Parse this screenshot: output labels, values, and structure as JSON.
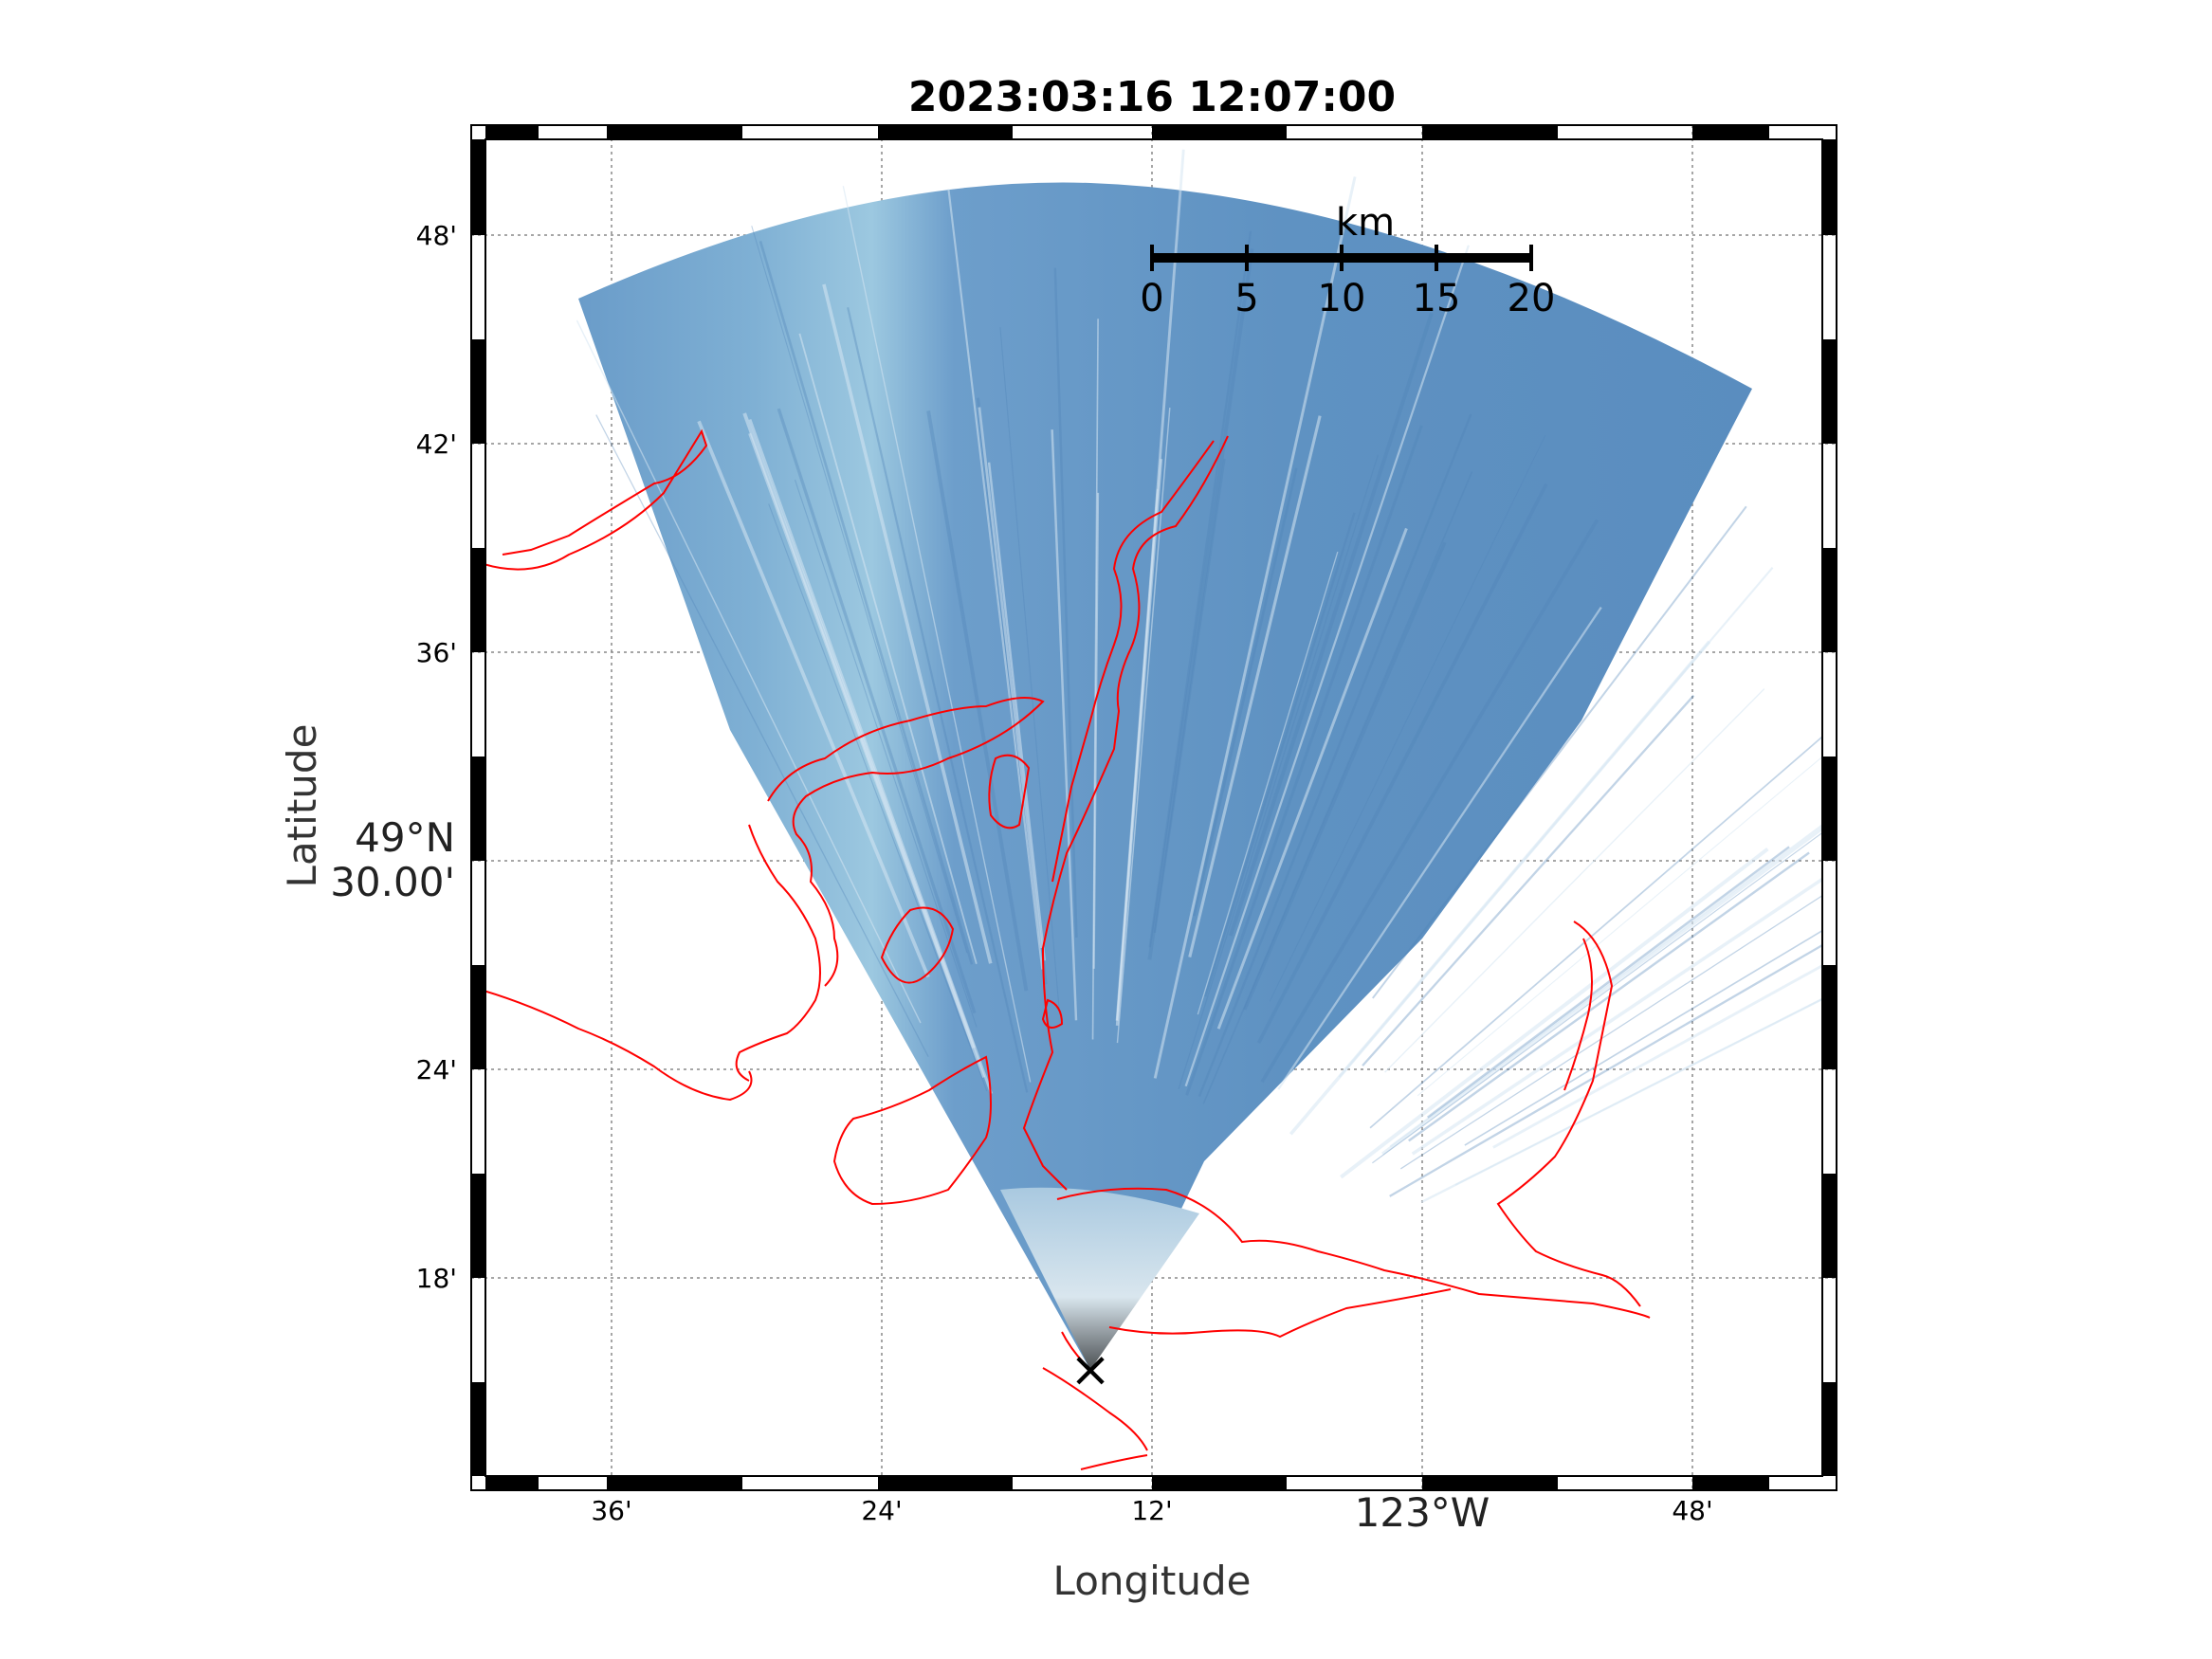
{
  "title": "2023:03:16 12:07:00",
  "axes": {
    "xlabel": "Longitude",
    "ylabel": "Latitude"
  },
  "lon_ticks": [
    {
      "value": -123.6,
      "label": "36'"
    },
    {
      "value": -123.4,
      "label": "24'"
    },
    {
      "value": -123.2,
      "label": "12'"
    },
    {
      "value": -122.8,
      "label": "48'"
    }
  ],
  "lon_main": {
    "value": -123.0,
    "label": "123°W"
  },
  "lat_ticks": [
    {
      "value": 49.8,
      "label": "48'"
    },
    {
      "value": 49.7,
      "label": "42'"
    },
    {
      "value": 49.6,
      "label": "36'"
    },
    {
      "value": 49.4,
      "label": "24'"
    },
    {
      "value": 49.3,
      "label": "18'"
    }
  ],
  "lat_main": {
    "value": 49.5,
    "label_line1": "49°N",
    "label_line2": "30.00'"
  },
  "scalebar": {
    "unit": "km",
    "ticks": [
      "0",
      "5",
      "10",
      "15",
      "20"
    ]
  },
  "camera_marker": "×",
  "colors": {
    "coastline": "#ff0000",
    "sky_fan": "#5b8ec0",
    "sky_fan_light": "#8fbcd8",
    "frame": "#000000",
    "grid": "#888888"
  }
}
